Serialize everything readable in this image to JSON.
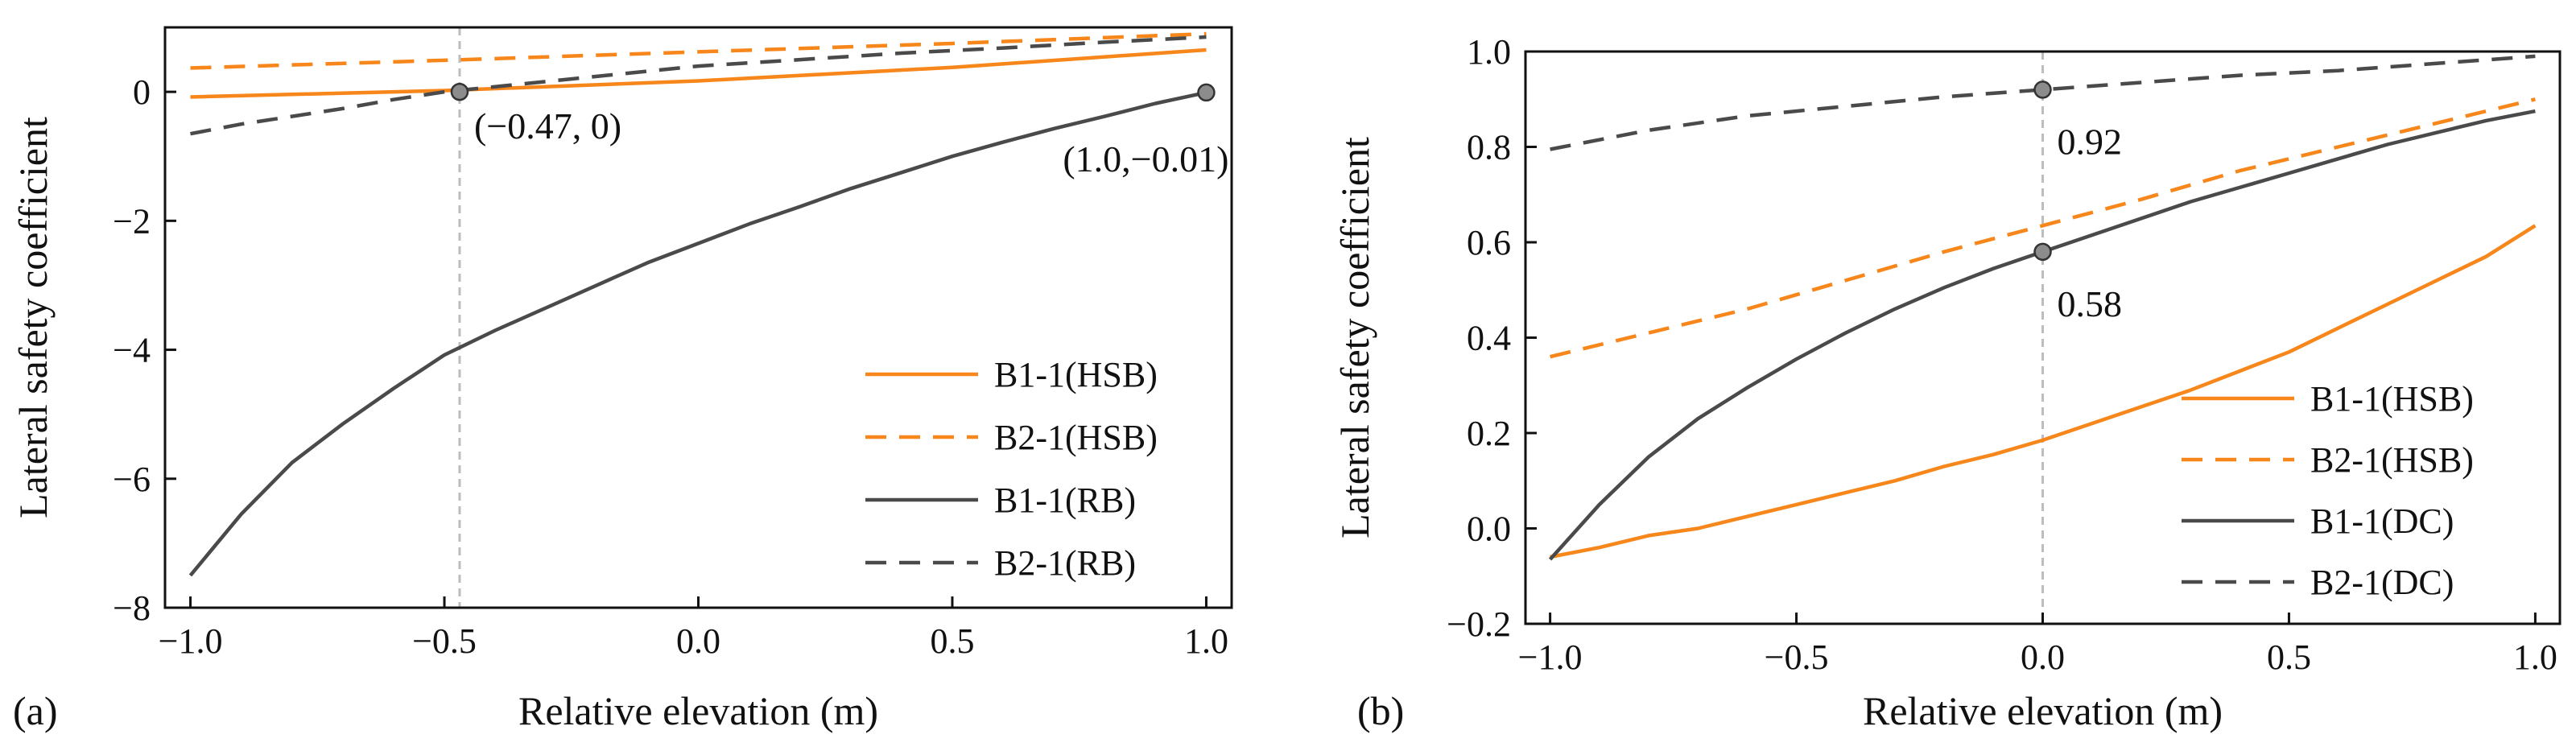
{
  "colors": {
    "orange": "#F7861B",
    "dark": "#4A4A4A",
    "guide": "#BDBDBD",
    "marker": "#8C8C8C"
  },
  "chart_data": [
    {
      "panel": "(a)",
      "type": "line",
      "xlabel": "Relative elevation (m)",
      "ylabel": "Lateral safety coefficient",
      "xlim": [
        -1.05,
        1.05
      ],
      "ylim": [
        -8,
        1.0
      ],
      "xticks": [
        -1.0,
        -0.5,
        0.0,
        0.5,
        1.0
      ],
      "xtick_labels": [
        "−1.0",
        "−0.5",
        "0.0",
        "0.5",
        "1.0"
      ],
      "yticks": [
        -8,
        -6,
        -4,
        -2,
        0
      ],
      "ytick_labels": [
        "−8",
        "−6",
        "−4",
        "−2",
        "0"
      ],
      "legend_position": "bottom-right",
      "series": [
        {
          "name": "B1-1(HSB)",
          "color": "orange",
          "dash": false,
          "x": [
            -1.0,
            -0.5,
            0.0,
            0.5,
            1.0
          ],
          "y": [
            -0.08,
            0.02,
            0.17,
            0.38,
            0.65
          ]
        },
        {
          "name": "B2-1(HSB)",
          "color": "orange",
          "dash": true,
          "x": [
            -1.0,
            -0.5,
            0.0,
            0.5,
            1.0
          ],
          "y": [
            0.37,
            0.49,
            0.62,
            0.75,
            0.9
          ]
        },
        {
          "name": "B1-1(RB)",
          "color": "dark",
          "dash": false,
          "x": [
            -1.0,
            -0.9,
            -0.8,
            -0.7,
            -0.6,
            -0.5,
            -0.4,
            -0.3,
            -0.2,
            -0.1,
            0.0,
            0.1,
            0.2,
            0.3,
            0.4,
            0.5,
            0.6,
            0.7,
            0.8,
            0.9,
            1.0
          ],
          "y": [
            -7.5,
            -6.55,
            -5.75,
            -5.15,
            -4.6,
            -4.08,
            -3.7,
            -3.35,
            -3.0,
            -2.65,
            -2.35,
            -2.05,
            -1.78,
            -1.5,
            -1.25,
            -1.0,
            -0.78,
            -0.57,
            -0.38,
            -0.18,
            -0.01
          ]
        },
        {
          "name": "B2-1(RB)",
          "color": "dark",
          "dash": true,
          "x": [
            -1.0,
            -0.9,
            -0.8,
            -0.7,
            -0.6,
            -0.5,
            -0.4,
            -0.3,
            -0.2,
            -0.1,
            0.0,
            0.2,
            0.4,
            0.6,
            0.8,
            1.0
          ],
          "y": [
            -0.65,
            -0.5,
            -0.38,
            -0.26,
            -0.12,
            0.0,
            0.08,
            0.16,
            0.24,
            0.32,
            0.4,
            0.5,
            0.6,
            0.68,
            0.77,
            0.85
          ]
        }
      ],
      "guide_lines": [
        {
          "x": -0.47
        }
      ],
      "markers": [
        {
          "x": -0.47,
          "y": 0
        },
        {
          "x": 1.0,
          "y": -0.01
        }
      ],
      "annotations": [
        "(−0.47, 0)",
        "(1.0,−0.01)"
      ]
    },
    {
      "panel": "(b)",
      "type": "line",
      "xlabel": "Relative elevation (m)",
      "ylabel": "Lateral safety coefficient",
      "xlim": [
        -1.05,
        1.05
      ],
      "ylim": [
        -0.2,
        1.0
      ],
      "xticks": [
        -1.0,
        -0.5,
        0.0,
        0.5,
        1.0
      ],
      "xtick_labels": [
        "−1.0",
        "−0.5",
        "0.0",
        "0.5",
        "1.0"
      ],
      "yticks": [
        -0.2,
        0.0,
        0.2,
        0.4,
        0.6,
        0.8,
        1.0
      ],
      "ytick_labels": [
        "−0.2",
        "0.0",
        "0.2",
        "0.4",
        "0.6",
        "0.8",
        "1.0"
      ],
      "legend_position": "bottom-right",
      "series": [
        {
          "name": "B1-1(HSB)",
          "color": "orange",
          "dash": false,
          "x": [
            -1.0,
            -0.9,
            -0.8,
            -0.7,
            -0.6,
            -0.5,
            -0.4,
            -0.3,
            -0.2,
            -0.1,
            0.0,
            0.1,
            0.2,
            0.3,
            0.4,
            0.5,
            0.6,
            0.7,
            0.8,
            0.9,
            1.0
          ],
          "y": [
            -0.06,
            -0.04,
            -0.015,
            0.0,
            0.025,
            0.05,
            0.075,
            0.1,
            0.13,
            0.155,
            0.185,
            0.22,
            0.255,
            0.29,
            0.33,
            0.37,
            0.42,
            0.47,
            0.52,
            0.57,
            0.635
          ]
        },
        {
          "name": "B2-1(HSB)",
          "color": "orange",
          "dash": true,
          "x": [
            -1.0,
            -0.8,
            -0.6,
            -0.4,
            -0.2,
            0.0,
            0.2,
            0.4,
            0.6,
            0.8,
            1.0
          ],
          "y": [
            0.36,
            0.41,
            0.46,
            0.52,
            0.58,
            0.635,
            0.69,
            0.75,
            0.8,
            0.85,
            0.9
          ]
        },
        {
          "name": "B1-1(DC)",
          "color": "dark",
          "dash": false,
          "x": [
            -1.0,
            -0.9,
            -0.8,
            -0.7,
            -0.6,
            -0.5,
            -0.4,
            -0.3,
            -0.2,
            -0.1,
            0.0,
            0.1,
            0.2,
            0.3,
            0.4,
            0.5,
            0.6,
            0.7,
            0.8,
            0.9,
            1.0
          ],
          "y": [
            -0.065,
            0.05,
            0.15,
            0.23,
            0.295,
            0.355,
            0.41,
            0.46,
            0.505,
            0.545,
            0.58,
            0.615,
            0.65,
            0.685,
            0.715,
            0.745,
            0.775,
            0.805,
            0.83,
            0.855,
            0.875
          ]
        },
        {
          "name": "B2-1(DC)",
          "color": "dark",
          "dash": true,
          "x": [
            -1.0,
            -0.8,
            -0.6,
            -0.4,
            -0.2,
            0.0,
            0.2,
            0.4,
            0.6,
            0.8,
            1.0
          ],
          "y": [
            0.795,
            0.835,
            0.865,
            0.885,
            0.905,
            0.92,
            0.935,
            0.95,
            0.96,
            0.975,
            0.99
          ]
        }
      ],
      "guide_lines": [
        {
          "x": 0.0
        }
      ],
      "markers": [
        {
          "x": 0.0,
          "y": 0.92
        },
        {
          "x": 0.0,
          "y": 0.58
        }
      ],
      "annotations": [
        "0.92",
        "0.58"
      ]
    }
  ]
}
